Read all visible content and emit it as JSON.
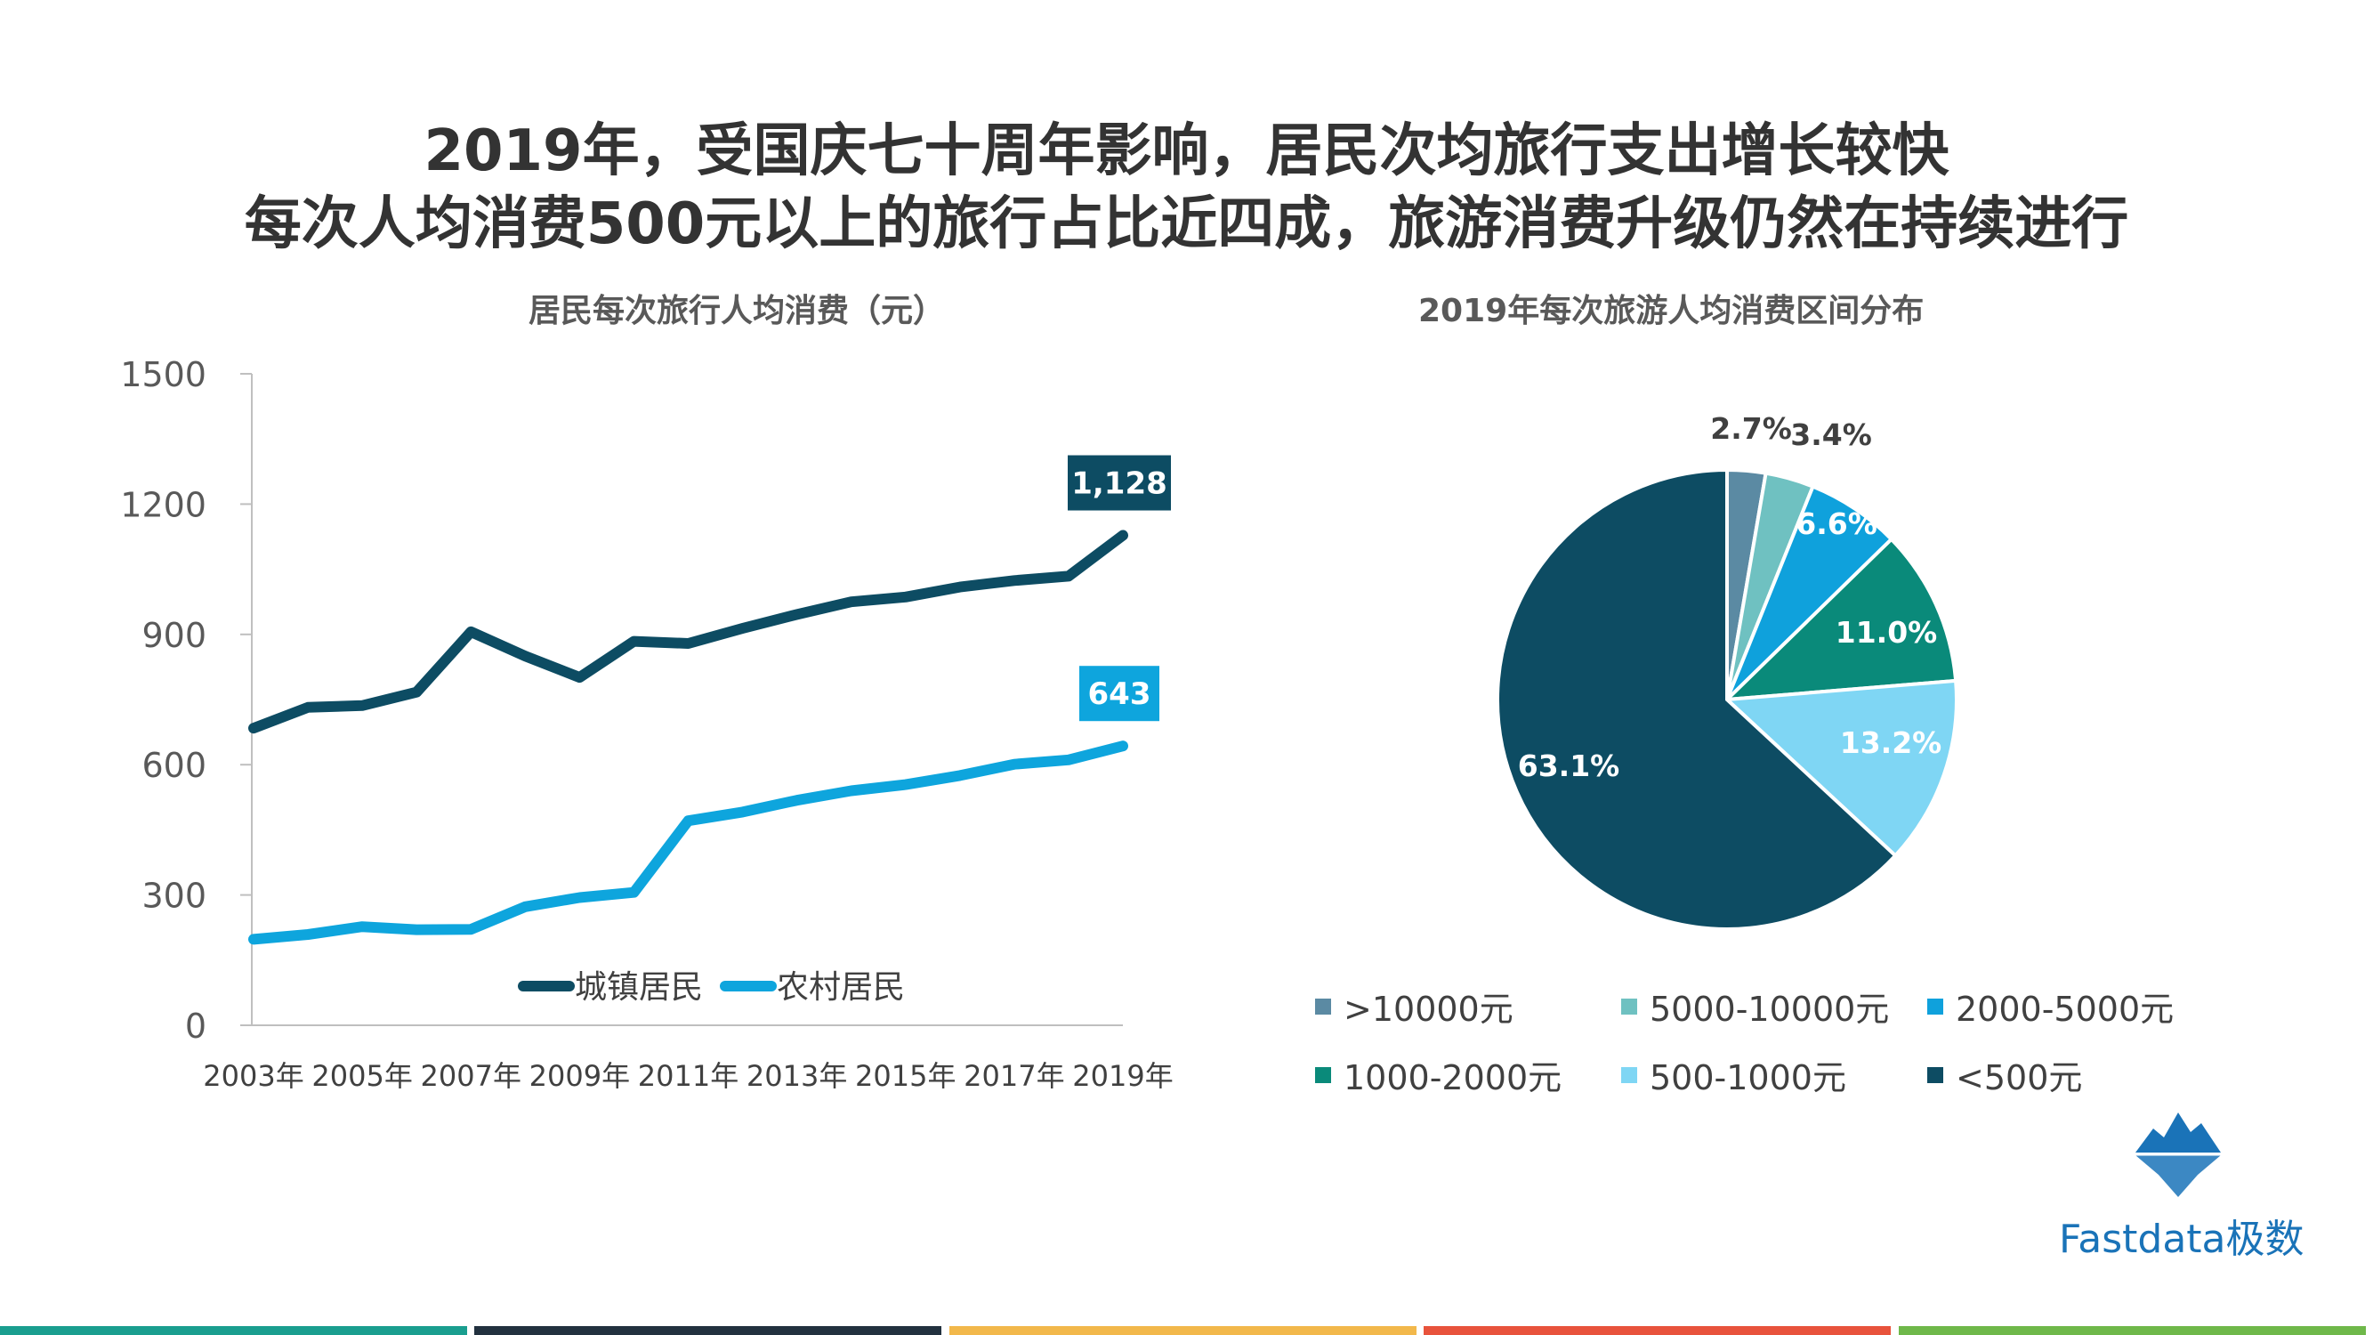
{
  "title_lines": [
    "2019年，受国庆七十周年影响，居民次均旅行支出增长较快",
    "每次人均消费500元以上的旅行占比近四成，旅游消费升级仍然在持续进行"
  ],
  "chart_data": [
    {
      "type": "line",
      "title": "居民每次旅行人均消费（元）",
      "x": [
        "2003年",
        "2004年",
        "2005年",
        "2006年",
        "2007年",
        "2008年",
        "2009年",
        "2010年",
        "2011年",
        "2012年",
        "2013年",
        "2014年",
        "2015年",
        "2016年",
        "2017年",
        "2018年",
        "2019年"
      ],
      "x_tick_labels": [
        "2003年",
        "2005年",
        "2007年",
        "2009年",
        "2011年",
        "2013年",
        "2015年",
        "2017年",
        "2019年"
      ],
      "ylim": [
        0,
        1500
      ],
      "y_ticks": [
        0,
        300,
        600,
        900,
        1200,
        1500
      ],
      "series": [
        {
          "name": "城镇居民",
          "color": "#0d4c63",
          "values": [
            684,
            732,
            736,
            767,
            906,
            850,
            801,
            884,
            879,
            914,
            946,
            975,
            986,
            1009,
            1024,
            1034,
            1128
          ],
          "end_label": "1,128"
        },
        {
          "name": "农村居民",
          "color": "#0ea5dd",
          "values": [
            198,
            209,
            227,
            220,
            221,
            273,
            294,
            306,
            471,
            491,
            518,
            540,
            554,
            575,
            601,
            611,
            643
          ],
          "end_label": "643"
        }
      ],
      "legend_position": "bottom-center"
    },
    {
      "type": "pie",
      "title": "2019年每次旅游人均消费区间分布",
      "slices": [
        {
          "label": ">10000元",
          "value": 2.7,
          "text": "2.7%",
          "color": "#5b8aa3"
        },
        {
          "label": "5000-10000元",
          "value": 3.4,
          "text": "3.4%",
          "color": "#6fc1c1"
        },
        {
          "label": "2000-5000元",
          "value": 6.6,
          "text": "6.6%",
          "color": "#0fa1dc"
        },
        {
          "label": "1000-2000元",
          "value": 11.0,
          "text": "11.0%",
          "color": "#0a8a7a"
        },
        {
          "label": "500-1000元",
          "value": 13.2,
          "text": "13.2%",
          "color": "#7fd6f4"
        },
        {
          "label": "<500元",
          "value": 63.1,
          "text": "63.1%",
          "color": "#0d4c63"
        }
      ],
      "legend_position": "bottom"
    }
  ],
  "logo": {
    "text": "Fastdata极数",
    "color": "#1a73b8"
  },
  "bottom_bar_colors": [
    "#1a9e8f",
    "#22313f",
    "#f2b84b",
    "#e8533c",
    "#6fb84a"
  ]
}
